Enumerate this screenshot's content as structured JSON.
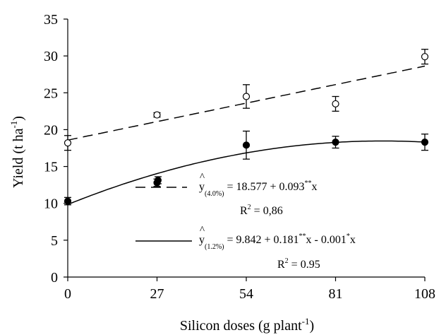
{
  "chart_data": {
    "type": "scatter",
    "xlabel": "Silicon doses  (g plant-1)",
    "xlabel_main": "Silicon doses  (g plant",
    "xlabel_sup": "-1",
    "xlabel_close": ")",
    "ylabel": "Yield (t ha-1)",
    "ylabel_main": "Yield (t ha",
    "ylabel_sup": "-1",
    "ylabel_close": ")",
    "xlim": [
      0,
      108
    ],
    "ylim": [
      0,
      35
    ],
    "x_ticks": [
      0,
      27,
      54,
      81,
      108
    ],
    "y_ticks": [
      0,
      5,
      10,
      15,
      20,
      25,
      30,
      35
    ],
    "grid": false,
    "series": [
      {
        "marker": "open-circle",
        "line_style": "dashed",
        "x": [
          0,
          27,
          54,
          81,
          108
        ],
        "values": [
          18.2,
          22.0,
          24.5,
          23.5,
          29.9
        ],
        "error": [
          1.0,
          0.3,
          1.6,
          1.0,
          1.0
        ],
        "fit": {
          "intercept": 18.577,
          "slope": 0.093
        }
      },
      {
        "marker": "filled-circle",
        "line_style": "solid",
        "x": [
          0,
          27,
          54,
          81,
          108
        ],
        "values": [
          10.3,
          12.8,
          17.9,
          18.3,
          18.3
        ],
        "error": [
          0.5,
          0.5,
          1.9,
          0.8,
          1.1
        ],
        "fit": {
          "intercept": 9.842,
          "b1": 0.181,
          "b2": -0.001
        }
      }
    ],
    "legend": [
      {
        "yhat": "y",
        "subscript": "(4.0%)",
        "equation_a": "= 18.577 + 0.093",
        "sup_a": "**",
        "equation_b": "x",
        "r2_label": "R",
        "r2_sup": "2",
        "r2_value": " = 0,86"
      },
      {
        "yhat": "y",
        "subscript": "(1.2%)",
        "equation_a": "= 9.842 + 0.181",
        "sup_a": "**",
        "equation_b": "x - 0.001",
        "sup_b": "*",
        "equation_c": "x",
        "r2_label": "R",
        "r2_sup": "2",
        "r2_value": " = 0.95"
      }
    ]
  }
}
